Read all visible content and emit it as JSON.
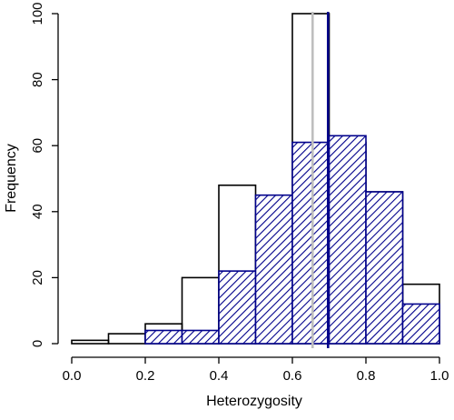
{
  "chart_data": {
    "type": "bar",
    "title": "",
    "xlabel": "Heterozygosity",
    "ylabel": "Frequency",
    "xlim": [
      0.0,
      1.0
    ],
    "ylim": [
      0,
      100
    ],
    "x_ticks": [
      "0.0",
      "0.2",
      "0.4",
      "0.6",
      "0.8",
      "1.0"
    ],
    "y_ticks": [
      "0",
      "20",
      "40",
      "60",
      "80",
      "100"
    ],
    "bin_edges": [
      0.0,
      0.1,
      0.2,
      0.3,
      0.4,
      0.5,
      0.6,
      0.7,
      0.8,
      0.9,
      1.0
    ],
    "series": [
      {
        "style": "open",
        "color": "#000000",
        "values": [
          1,
          3,
          6,
          20,
          48,
          39,
          100,
          61,
          46,
          18
        ]
      },
      {
        "style": "hatched",
        "color": "#00008b",
        "values": [
          0,
          0,
          4,
          4,
          22,
          45,
          61,
          63,
          46,
          12
        ]
      }
    ],
    "vlines": [
      {
        "x": 0.655,
        "color": "#bebebe"
      },
      {
        "x": 0.697,
        "color": "#00008b"
      }
    ],
    "grid": false,
    "legend": "none"
  }
}
